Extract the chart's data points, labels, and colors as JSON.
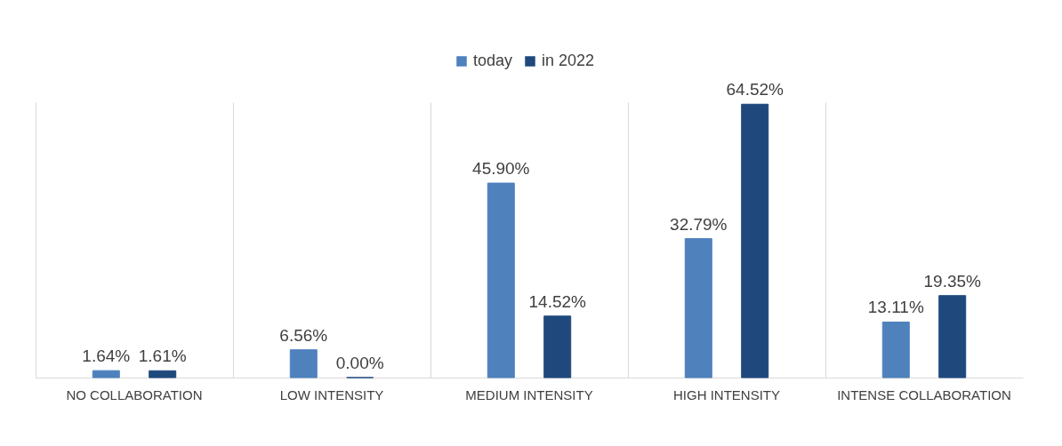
{
  "chart_data": {
    "type": "bar",
    "categories": [
      "NO COLLABORATION",
      "LOW INTENSITY",
      "MEDIUM INTENSITY",
      "HIGH INTENSITY",
      "INTENSE COLLABORATION"
    ],
    "series": [
      {
        "name": "today",
        "color": "#4f81bd",
        "values": [
          1.64,
          6.56,
          45.9,
          32.79,
          13.11
        ],
        "value_labels": [
          "1.64%",
          "6.56%",
          "45.90%",
          "32.79%",
          "13.11%"
        ]
      },
      {
        "name": "in 2022",
        "color": "#1f497d",
        "values": [
          1.61,
          0.0,
          14.52,
          64.52,
          19.35
        ],
        "value_labels": [
          "1.61%",
          "0.00%",
          "14.52%",
          "64.52%",
          "19.35%"
        ]
      }
    ],
    "grid": "x",
    "legend": "top"
  }
}
